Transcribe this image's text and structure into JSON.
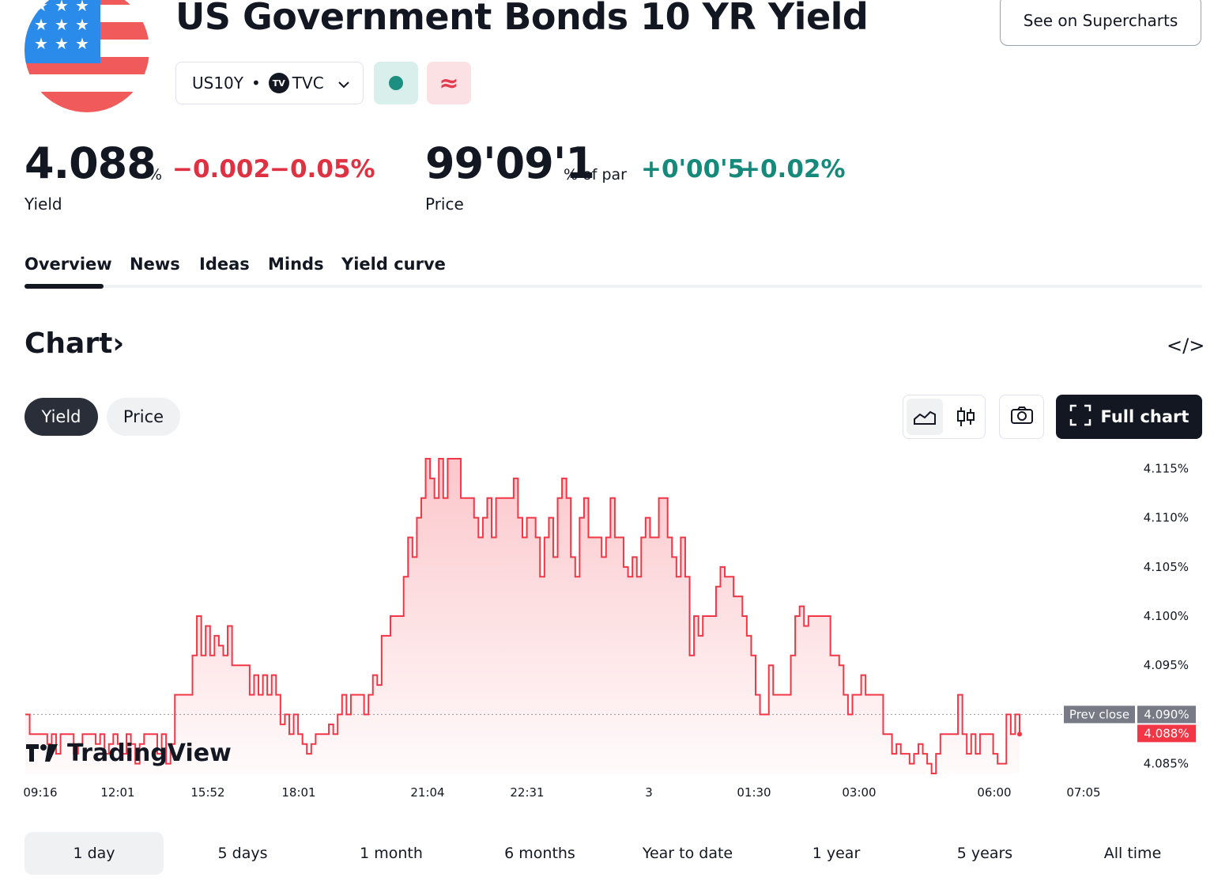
{
  "header": {
    "title": "US Government Bonds 10 YR Yield",
    "supercharts_button": "See on Supercharts",
    "symbol": "US10Y",
    "separator": "•",
    "exchange": "TVC",
    "delay_symbol": "≈"
  },
  "quote": {
    "yield_value": "4.088",
    "yield_unit": "%",
    "yield_change": "−0.002",
    "yield_change_pct": "−0.05%",
    "yield_label": "Yield",
    "price_value": "99'09'1",
    "price_unit": "% of par",
    "price_change": "+0'00'5",
    "price_change_pct": "+0.02%",
    "price_label": "Price"
  },
  "tabs": [
    "Overview",
    "News",
    "Ideas",
    "Minds",
    "Yield curve"
  ],
  "chart_section": {
    "heading": "Chart",
    "heading_arrow": "›",
    "embed_icon": "</>",
    "toggle_yield": "Yield",
    "toggle_price": "Price",
    "full_chart_button": "Full chart",
    "watermark": "TradingView"
  },
  "ranges": [
    "1 day",
    "5 days",
    "1 month",
    "6 months",
    "Year to date",
    "1 year",
    "5 years",
    "All time"
  ],
  "colors": {
    "negative": "#e03142",
    "positive": "#15897a",
    "line": "#f23645",
    "dark": "#131722"
  },
  "chart_data": {
    "type": "area",
    "x_ticks": [
      "09:16",
      "12:01",
      "15:52",
      "18:01",
      "21:04",
      "22:31",
      "3",
      "01:30",
      "03:00",
      "06:00",
      "07:05"
    ],
    "y_ticks": [
      "4.115%",
      "4.110%",
      "4.105%",
      "4.100%",
      "4.095%",
      "4.090%",
      "4.085%"
    ],
    "ylim": [
      4.084,
      4.116
    ],
    "prev_close_label": "Prev close",
    "prev_close": "4.090%",
    "prev_close_value": 4.09,
    "last_label": "4.088%",
    "values": [
      4.09,
      4.088,
      4.088,
      4.088,
      4.088,
      4.087,
      4.088,
      4.086,
      4.088,
      4.088,
      4.088,
      4.086,
      4.087,
      4.088,
      4.088,
      4.088,
      4.087,
      4.088,
      4.086,
      4.087,
      4.088,
      4.087,
      4.086,
      4.088,
      4.087,
      4.085,
      4.087,
      4.088,
      4.088,
      4.088,
      4.086,
      4.088,
      4.085,
      4.087,
      4.092,
      4.092,
      4.092,
      4.092,
      4.096,
      4.1,
      4.096,
      4.099,
      4.096,
      4.098,
      4.097,
      4.096,
      4.099,
      4.095,
      4.095,
      4.095,
      4.095,
      4.092,
      4.094,
      4.092,
      4.094,
      4.092,
      4.094,
      4.092,
      4.089,
      4.09,
      4.088,
      4.09,
      4.088,
      4.087,
      4.086,
      4.087,
      4.088,
      4.088,
      4.088,
      4.089,
      4.088,
      4.09,
      4.092,
      4.09,
      4.092,
      4.092,
      4.092,
      4.09,
      4.092,
      4.094,
      4.093,
      4.098,
      4.098,
      4.1,
      4.1,
      4.1,
      4.104,
      4.108,
      4.106,
      4.11,
      4.112,
      4.116,
      4.114,
      4.112,
      4.116,
      4.112,
      4.116,
      4.116,
      4.116,
      4.112,
      4.112,
      4.112,
      4.11,
      4.108,
      4.11,
      4.112,
      4.108,
      4.112,
      4.112,
      4.112,
      4.112,
      4.114,
      4.11,
      4.108,
      4.11,
      4.11,
      4.108,
      4.104,
      4.108,
      4.11,
      4.106,
      4.112,
      4.114,
      4.112,
      4.106,
      4.104,
      4.11,
      4.112,
      4.108,
      4.108,
      4.108,
      4.106,
      4.108,
      4.112,
      4.108,
      4.108,
      4.105,
      4.104,
      4.106,
      4.104,
      4.108,
      4.11,
      4.108,
      4.108,
      4.112,
      4.112,
      4.108,
      4.106,
      4.104,
      4.108,
      4.104,
      4.096,
      4.1,
      4.098,
      4.1,
      4.1,
      4.1,
      4.103,
      4.105,
      4.104,
      4.104,
      4.102,
      4.102,
      4.1,
      4.098,
      4.096,
      4.092,
      4.09,
      4.09,
      4.095,
      4.092,
      4.092,
      4.092,
      4.092,
      4.096,
      4.1,
      4.101,
      4.099,
      4.1,
      4.1,
      4.1,
      4.1,
      4.1,
      4.096,
      4.096,
      4.095,
      4.092,
      4.09,
      4.092,
      4.092,
      4.094,
      4.092,
      4.092,
      4.092,
      4.092,
      4.088,
      4.088,
      4.086,
      4.087,
      4.086,
      4.086,
      4.085,
      4.086,
      4.087,
      4.086,
      4.085,
      4.084,
      4.086,
      4.088,
      4.088,
      4.088,
      4.088,
      4.092,
      4.088,
      4.086,
      4.088,
      4.086,
      4.088,
      4.088,
      4.088,
      4.086,
      4.085,
      4.085,
      4.09,
      4.088,
      4.09,
      4.088
    ]
  }
}
